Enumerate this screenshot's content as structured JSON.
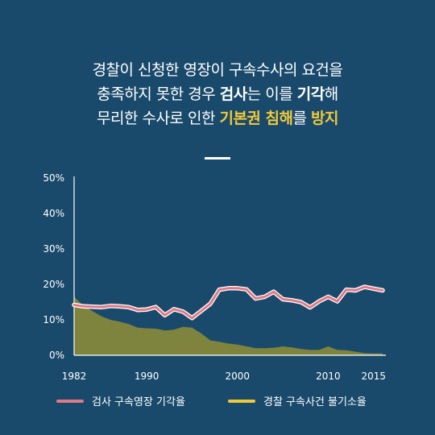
{
  "headline": {
    "line1": "경찰이 신청한 영장이 구속수사의 요건을",
    "line2_a": "충족하지 못한 경우 ",
    "line2_b": "검사",
    "line2_c": "는 이를 ",
    "line2_d": "기각",
    "line2_e": "해",
    "line3_a": "무리한 수사로 인한 ",
    "line3_b": "기본권 침해",
    "line3_c": "를 ",
    "line3_d": "방지"
  },
  "colors": {
    "background": "#1a4a6b",
    "accent_yellow": "#f1c93a",
    "line_series": "#e07a86",
    "area_fill": "#8a8a3a"
  },
  "chart_data": {
    "type": "line",
    "x_ticks": [
      1982,
      1990,
      2000,
      2010,
      2015
    ],
    "y_ticks": [
      "0%",
      "10%",
      "20%",
      "30%",
      "40%",
      "50%"
    ],
    "ylim": [
      0,
      50
    ],
    "xlim": [
      1982,
      2016
    ],
    "grid": false,
    "legend_position": "bottom",
    "series": [
      {
        "name": "검사 구속영장 기각율",
        "style": "line",
        "color": "#e07a86",
        "x": [
          1982,
          1983,
          1984,
          1985,
          1986,
          1987,
          1988,
          1989,
          1990,
          1991,
          1992,
          1993,
          1994,
          1995,
          1996,
          1997,
          1998,
          1999,
          2000,
          2001,
          2002,
          2003,
          2004,
          2005,
          2006,
          2007,
          2008,
          2009,
          2010,
          2011,
          2012,
          2013,
          2014,
          2015,
          2016
        ],
        "values": [
          14.2,
          13.8,
          13.7,
          13.6,
          13.9,
          13.8,
          13.6,
          12.8,
          12.9,
          13.6,
          11.3,
          13.0,
          12.3,
          10.5,
          12.5,
          14.5,
          18.5,
          18.9,
          18.9,
          18.6,
          16.0,
          16.5,
          17.9,
          15.8,
          15.5,
          15.0,
          13.5,
          15.2,
          16.5,
          15.2,
          18.5,
          18.3,
          19.3,
          18.8,
          18.3
        ]
      },
      {
        "name": "경찰 구속사건 불기소율",
        "style": "area",
        "color": "#8a8a3a",
        "x": [
          1982,
          1983,
          1984,
          1985,
          1986,
          1987,
          1988,
          1989,
          1990,
          1991,
          1992,
          1993,
          1994,
          1995,
          1996,
          1997,
          1998,
          1999,
          2000,
          2001,
          2002,
          2003,
          2004,
          2005,
          2006,
          2007,
          2008,
          2009,
          2010,
          2011,
          2012,
          2013,
          2014,
          2015,
          2016
        ],
        "values": [
          16.5,
          14.0,
          12.5,
          11.0,
          10.0,
          9.5,
          8.8,
          7.8,
          7.6,
          7.5,
          7.0,
          7.2,
          8.0,
          7.8,
          6.2,
          4.2,
          3.8,
          3.3,
          3.0,
          2.5,
          2.0,
          2.0,
          2.1,
          2.5,
          2.2,
          1.8,
          1.5,
          1.5,
          2.5,
          1.5,
          1.4,
          1.0,
          0.6,
          0.5,
          0.5
        ]
      }
    ]
  },
  "legend": {
    "item1": "검사 구속영장 기각율",
    "item2": "경찰 구속사건 불기소율"
  }
}
